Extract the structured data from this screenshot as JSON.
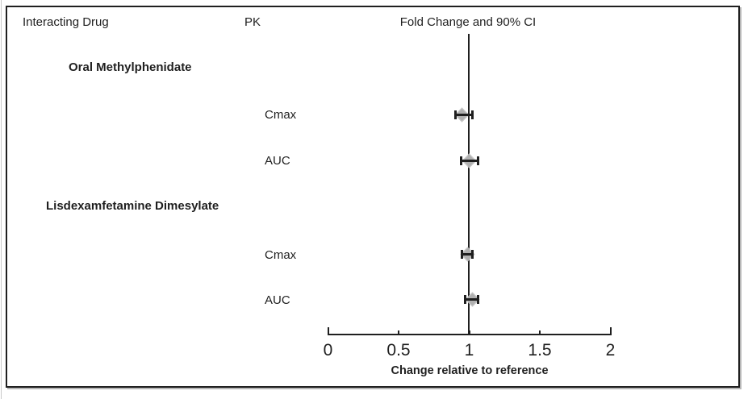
{
  "header": {
    "interacting_drug_label": "Interacting Drug",
    "pk_label": "PK",
    "fold_change_label": "Fold Change and 90% CI"
  },
  "chart_data": {
    "type": "scatter",
    "subtype": "forest-plot",
    "title": "Fold Change and 90% CI",
    "xlabel": "Change relative to reference",
    "x_ticks": [
      0,
      0.5,
      1,
      1.5,
      2
    ],
    "xlim": [
      0,
      2
    ],
    "reference_line": 1,
    "ci_level": "90%",
    "legend_position": "none",
    "grid": false,
    "marker": "diamond",
    "marker_color": "#b0b0b0",
    "line_color": "#1f1f1f",
    "groups": [
      {
        "label": "Oral Methylphenidate",
        "rows": [
          {
            "pk": "Cmax",
            "estimate": 0.95,
            "ci_low": 0.9,
            "ci_high": 1.02
          },
          {
            "pk": "AUC",
            "estimate": 1.0,
            "ci_low": 0.94,
            "ci_high": 1.06
          }
        ]
      },
      {
        "label": "Lisdexamfetamine Dimesylate",
        "rows": [
          {
            "pk": "Cmax",
            "estimate": 0.99,
            "ci_low": 0.95,
            "ci_high": 1.02
          },
          {
            "pk": "AUC",
            "estimate": 1.02,
            "ci_low": 0.97,
            "ci_high": 1.06
          }
        ]
      }
    ]
  }
}
